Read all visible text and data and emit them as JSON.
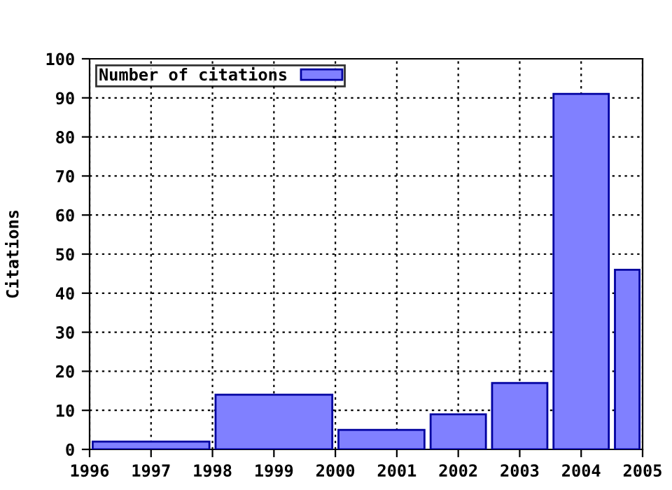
{
  "chart_data": {
    "type": "histogram",
    "ylabel": "Citations",
    "bins": [
      1996,
      1998,
      2000,
      2001.5,
      2002.5,
      2003.5,
      2004.5,
      2005
    ],
    "series": [
      {
        "name": "Number of citations",
        "color": "#8080ff",
        "values": [
          2,
          14,
          5,
          9,
          17,
          91,
          46
        ]
      }
    ],
    "xlim": [
      1996,
      2005
    ],
    "xticks": [
      1996,
      1997,
      1998,
      1999,
      2000,
      2001,
      2002,
      2003,
      2004,
      2005
    ],
    "ylim": [
      0,
      100
    ],
    "yticks": [
      0,
      10,
      20,
      30,
      40,
      50,
      60,
      70,
      80,
      90,
      100
    ],
    "grid": true,
    "legend": "top left"
  }
}
